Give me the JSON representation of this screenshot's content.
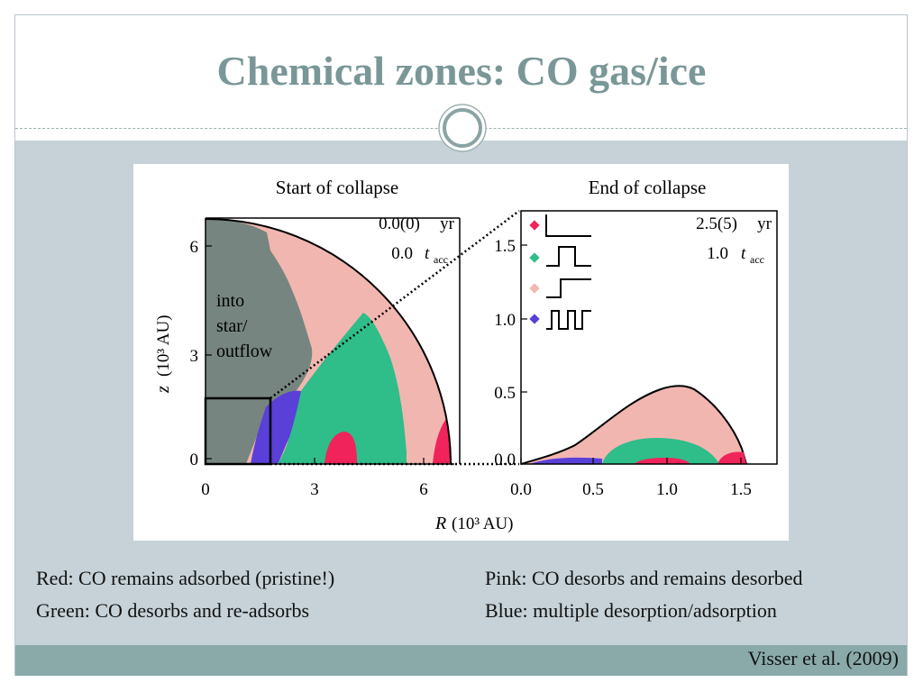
{
  "slide": {
    "title": "Chemical zones: CO gas/ice",
    "citation": "Visser et al. (2009)"
  },
  "captions": {
    "red": "Red: CO remains adsorbed (pristine!)",
    "green": "Green: CO desorbs and re-adsorbs",
    "pink": "Pink: CO desorbs and remains desorbed",
    "blue": "Blue: multiple desorption/adsorption"
  },
  "colors": {
    "title": "#7a9797",
    "band": "#c6d2d8",
    "footer": "#8aaaaa",
    "grey_region": "#76857f",
    "pink_region": "#f2b6b0",
    "green_region": "#2fbd8a",
    "red_region": "#f0245a",
    "blue_region": "#5a3fd8"
  },
  "figure": {
    "left_panel": {
      "heading": "Start of collapse",
      "time_label": "0.0(0)",
      "time_unit": "yr",
      "tacc_value": "0.0",
      "tacc_symbol": "t",
      "tacc_sub": "acc",
      "region_label_lines": [
        "into",
        "star/",
        "outflow"
      ],
      "x_ticks": [
        "0",
        "3",
        "6"
      ],
      "y_ticks": [
        "0",
        "3",
        "6"
      ],
      "y_axis_label": "z",
      "y_axis_unit": "(10³ AU)"
    },
    "right_panel": {
      "heading": "End of collapse",
      "time_label": "2.5(5)",
      "time_unit": "yr",
      "tacc_value": "1.0",
      "tacc_symbol": "t",
      "tacc_sub": "acc",
      "x_ticks": [
        "0.0",
        "0.5",
        "1.0",
        "1.5"
      ],
      "y_ticks": [
        "0.0",
        "0.5",
        "1.0",
        "1.5"
      ]
    },
    "x_axis_label": "R",
    "x_axis_unit": "(10³ AU)"
  }
}
